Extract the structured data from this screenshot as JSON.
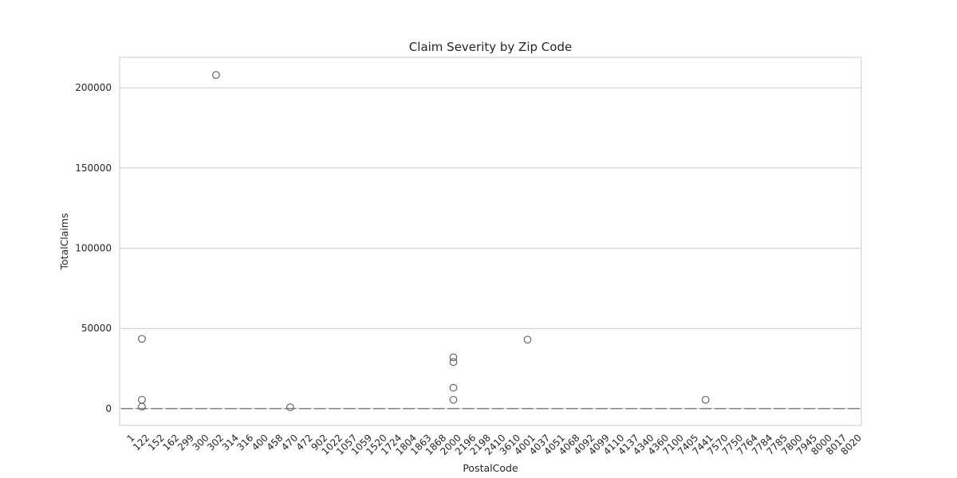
{
  "chart_data": {
    "type": "box",
    "title": "Claim Severity by Zip Code",
    "xlabel": "PostalCode",
    "ylabel": "TotalClaims",
    "ylim": [
      -10500,
      219000
    ],
    "yticks": [
      0,
      50000,
      100000,
      150000,
      200000
    ],
    "grid": "horizontal",
    "categories": [
      "1",
      "122",
      "152",
      "162",
      "299",
      "300",
      "302",
      "314",
      "316",
      "400",
      "458",
      "470",
      "472",
      "902",
      "1022",
      "1057",
      "1059",
      "1520",
      "1724",
      "1804",
      "1863",
      "1868",
      "2000",
      "2196",
      "2198",
      "2410",
      "3610",
      "4001",
      "4037",
      "4051",
      "4068",
      "4092",
      "4099",
      "4110",
      "4137",
      "4340",
      "4360",
      "7100",
      "7405",
      "7441",
      "7570",
      "7750",
      "7764",
      "7784",
      "7785",
      "7800",
      "7945",
      "8000",
      "8017",
      "8020"
    ],
    "median_all": 0,
    "outliers": [
      {
        "category": "122",
        "values": [
          43500,
          5500,
          1200
        ]
      },
      {
        "category": "302",
        "values": [
          208000
        ]
      },
      {
        "category": "470",
        "values": [
          800
        ]
      },
      {
        "category": "2000",
        "values": [
          32000,
          29000,
          13000,
          5500
        ]
      },
      {
        "category": "4001",
        "values": [
          43000
        ]
      },
      {
        "category": "7441",
        "values": [
          5500
        ]
      }
    ],
    "colors": {
      "grid": "#cccccc",
      "frame": "#cccccc",
      "marker_edge": "#595959",
      "median": "#808080"
    }
  }
}
